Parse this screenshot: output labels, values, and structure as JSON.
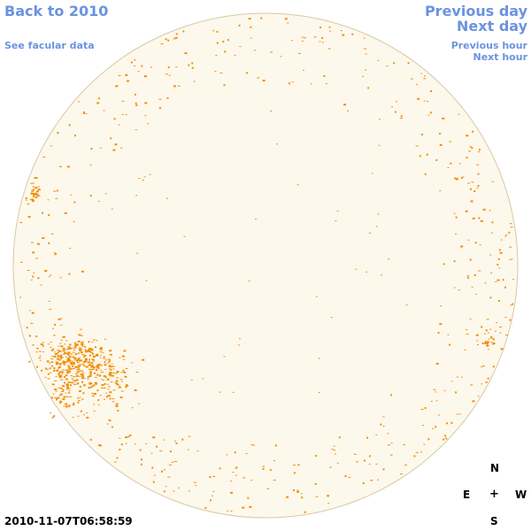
{
  "nav": {
    "back_label": "Back to 2010",
    "facular_label": "See facular data",
    "prev_day_label": "Previous day",
    "next_day_label": "Next day",
    "prev_hour_label": "Previous hour",
    "next_hour_label": "Next hour"
  },
  "compass": {
    "north": "N",
    "east": "E",
    "center": "+",
    "west": "W",
    "south": "S"
  },
  "timestamp": "2010-11-07T06:58:59",
  "colors": {
    "link": "#6b93e0",
    "disk_fill": "#fdf8ec",
    "disk_border": "#d8c8a8",
    "facula": "#f0900a"
  }
}
